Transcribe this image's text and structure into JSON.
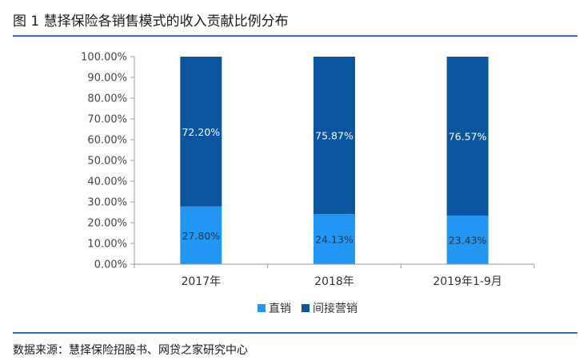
{
  "title": "图 1 慧择保险各销售模式的收入贡献比例分布",
  "source": "数据来源：慧择保险招股书、网贷之家研究中心",
  "colors": {
    "direct": "#2196f3",
    "indirect": "#0b55a0",
    "rule": "#2f6db5",
    "axis": "#999999"
  },
  "chart_data": {
    "type": "bar",
    "stacked": true,
    "categories": [
      "2017年",
      "2018年",
      "2019年1-9月"
    ],
    "series": [
      {
        "name": "直销",
        "values": [
          27.8,
          24.13,
          23.43
        ],
        "labels": [
          "27.80%",
          "24.13%",
          "23.43%"
        ]
      },
      {
        "name": "间接营销",
        "values": [
          72.2,
          75.87,
          76.57
        ],
        "labels": [
          "72.20%",
          "75.87%",
          "76.57%"
        ]
      }
    ],
    "ylim": [
      0,
      100
    ],
    "yticks": [
      "0.00%",
      "10.00%",
      "20.00%",
      "30.00%",
      "40.00%",
      "50.00%",
      "60.00%",
      "70.00%",
      "80.00%",
      "90.00%",
      "100.00%"
    ],
    "grid": false,
    "legend": "bottom"
  }
}
